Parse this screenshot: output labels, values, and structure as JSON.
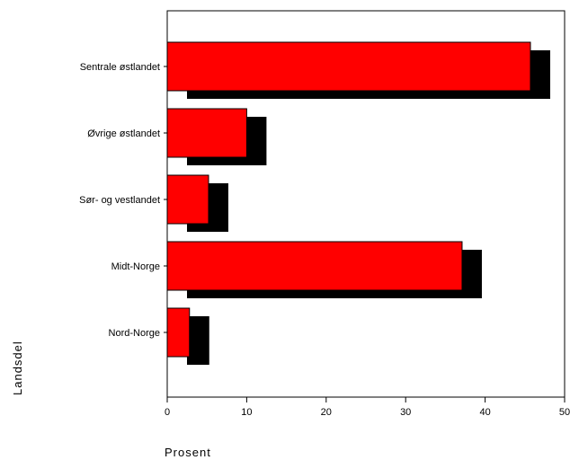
{
  "chart_data": {
    "type": "bar",
    "orientation": "horizontal",
    "categories": [
      "Sentrale østlandet",
      "Øvrige østlandet",
      "Sør- og vestlandet",
      "Midt-Norge",
      "Nord-Norge"
    ],
    "values": [
      45.7,
      10.0,
      5.2,
      37.1,
      2.8
    ],
    "xlabel": "Prosent",
    "ylabel": "Landsdel",
    "xlim": [
      0,
      50
    ],
    "xticks": [
      "0",
      "10",
      "20",
      "30",
      "40",
      "50"
    ],
    "bar_color": "#ff0000",
    "shadow_color": "#000000",
    "shadow_effect": true,
    "grid": false,
    "legend": "none"
  }
}
